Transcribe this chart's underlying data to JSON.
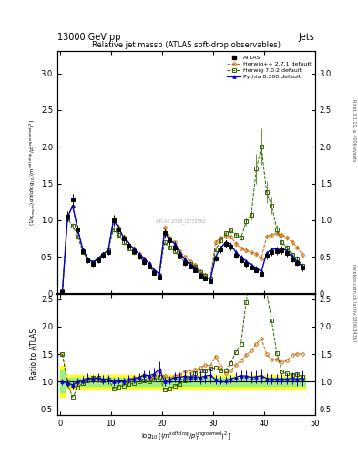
{
  "title": "Relative jet massρ (ATLAS soft-drop observables)",
  "header_left": "13000 GeV pp",
  "header_right": "Jets",
  "right_label1": "Rivet 3.1.10, ≥ 400k events",
  "right_label2": "mcplots.cern.ch [arXiv:1306.3436]",
  "watermark": "ATLAS 2019_I1772992",
  "ylim_main": [
    0,
    3.3
  ],
  "ylim_ratio": [
    0.4,
    2.6
  ],
  "yticks_main": [
    0,
    0.5,
    1.0,
    1.5,
    2.0,
    2.5,
    3.0
  ],
  "yticks_ratio": [
    0.5,
    1.0,
    1.5,
    2.0,
    2.5
  ],
  "xlim": [
    -0.5,
    50
  ],
  "xticks": [
    0,
    10,
    20,
    30,
    40,
    50
  ],
  "colors": {
    "atlas": "#000000",
    "herwig_pp": "#cc6600",
    "herwig7": "#336600",
    "pythia": "#0000cc"
  },
  "x": [
    0.5,
    1.5,
    2.5,
    3.5,
    4.5,
    5.5,
    6.5,
    7.5,
    8.5,
    9.5,
    10.5,
    11.5,
    12.5,
    13.5,
    14.5,
    15.5,
    16.5,
    17.5,
    18.5,
    19.5,
    20.5,
    21.5,
    22.5,
    23.5,
    24.5,
    25.5,
    26.5,
    27.5,
    28.5,
    29.5,
    30.5,
    31.5,
    32.5,
    33.5,
    34.5,
    35.5,
    36.5,
    37.5,
    38.5,
    39.5,
    40.5,
    41.5,
    42.5,
    43.5,
    44.5,
    45.5,
    46.5,
    47.5
  ],
  "y_atlas": [
    0.02,
    1.05,
    1.28,
    0.88,
    0.58,
    0.45,
    0.4,
    0.45,
    0.52,
    0.57,
    1.0,
    0.88,
    0.75,
    0.65,
    0.58,
    0.5,
    0.43,
    0.37,
    0.28,
    0.22,
    0.82,
    0.72,
    0.63,
    0.52,
    0.42,
    0.37,
    0.32,
    0.24,
    0.2,
    0.17,
    0.48,
    0.6,
    0.68,
    0.64,
    0.52,
    0.45,
    0.4,
    0.36,
    0.32,
    0.27,
    0.52,
    0.57,
    0.58,
    0.59,
    0.55,
    0.47,
    0.42,
    0.35
  ],
  "yerr_atlas": [
    0.01,
    0.07,
    0.08,
    0.06,
    0.04,
    0.04,
    0.03,
    0.04,
    0.04,
    0.04,
    0.07,
    0.06,
    0.05,
    0.05,
    0.04,
    0.04,
    0.04,
    0.03,
    0.03,
    0.03,
    0.06,
    0.05,
    0.05,
    0.04,
    0.04,
    0.03,
    0.03,
    0.03,
    0.02,
    0.02,
    0.04,
    0.05,
    0.05,
    0.05,
    0.04,
    0.04,
    0.04,
    0.03,
    0.03,
    0.03,
    0.05,
    0.05,
    0.05,
    0.05,
    0.05,
    0.04,
    0.04,
    0.04
  ],
  "y_herwig_pp": [
    0.03,
    1.06,
    1.18,
    0.86,
    0.58,
    0.46,
    0.42,
    0.47,
    0.54,
    0.6,
    1.0,
    0.9,
    0.77,
    0.67,
    0.62,
    0.54,
    0.48,
    0.4,
    0.31,
    0.26,
    0.9,
    0.76,
    0.7,
    0.58,
    0.5,
    0.44,
    0.39,
    0.3,
    0.26,
    0.22,
    0.7,
    0.76,
    0.78,
    0.77,
    0.68,
    0.62,
    0.59,
    0.56,
    0.54,
    0.48,
    0.78,
    0.8,
    0.82,
    0.8,
    0.76,
    0.7,
    0.63,
    0.53
  ],
  "y_herwig7": [
    0.03,
    1.02,
    0.92,
    0.78,
    0.57,
    0.46,
    0.43,
    0.48,
    0.53,
    0.59,
    0.88,
    0.8,
    0.7,
    0.62,
    0.56,
    0.5,
    0.44,
    0.37,
    0.29,
    0.24,
    0.7,
    0.63,
    0.58,
    0.5,
    0.43,
    0.4,
    0.37,
    0.29,
    0.24,
    0.21,
    0.6,
    0.72,
    0.82,
    0.86,
    0.8,
    0.76,
    0.98,
    1.07,
    1.7,
    2.0,
    1.38,
    1.2,
    0.88,
    0.7,
    0.63,
    0.53,
    0.48,
    0.38
  ],
  "y_pythia": [
    0.02,
    1.03,
    1.2,
    0.88,
    0.6,
    0.48,
    0.42,
    0.48,
    0.54,
    0.59,
    1.0,
    0.9,
    0.76,
    0.68,
    0.61,
    0.54,
    0.48,
    0.41,
    0.32,
    0.27,
    0.83,
    0.74,
    0.68,
    0.56,
    0.46,
    0.4,
    0.35,
    0.26,
    0.22,
    0.19,
    0.5,
    0.62,
    0.7,
    0.67,
    0.56,
    0.5,
    0.44,
    0.39,
    0.35,
    0.3,
    0.55,
    0.6,
    0.61,
    0.62,
    0.58,
    0.5,
    0.44,
    0.37
  ],
  "yerr_hpp": [
    0.01,
    0.04,
    0.04,
    0.03,
    0.03,
    0.02,
    0.02,
    0.02,
    0.02,
    0.02,
    0.04,
    0.03,
    0.03,
    0.03,
    0.03,
    0.02,
    0.02,
    0.02,
    0.02,
    0.02,
    0.03,
    0.03,
    0.03,
    0.02,
    0.02,
    0.02,
    0.02,
    0.02,
    0.02,
    0.02,
    0.03,
    0.03,
    0.03,
    0.03,
    0.03,
    0.02,
    0.02,
    0.02,
    0.02,
    0.02,
    0.03,
    0.03,
    0.03,
    0.03,
    0.03,
    0.03,
    0.03,
    0.03
  ],
  "yerr_h7": [
    0.01,
    0.04,
    0.04,
    0.03,
    0.03,
    0.02,
    0.02,
    0.02,
    0.02,
    0.02,
    0.04,
    0.03,
    0.03,
    0.03,
    0.03,
    0.02,
    0.02,
    0.02,
    0.02,
    0.02,
    0.03,
    0.03,
    0.03,
    0.02,
    0.02,
    0.02,
    0.02,
    0.02,
    0.02,
    0.02,
    0.03,
    0.03,
    0.03,
    0.03,
    0.03,
    0.03,
    0.05,
    0.06,
    0.2,
    0.25,
    0.15,
    0.12,
    0.06,
    0.04,
    0.04,
    0.04,
    0.04,
    0.04
  ],
  "yerr_pyt": [
    0.01,
    0.04,
    0.04,
    0.03,
    0.03,
    0.02,
    0.02,
    0.02,
    0.02,
    0.02,
    0.04,
    0.03,
    0.03,
    0.03,
    0.03,
    0.02,
    0.02,
    0.02,
    0.02,
    0.02,
    0.03,
    0.03,
    0.03,
    0.02,
    0.02,
    0.02,
    0.02,
    0.02,
    0.02,
    0.02,
    0.03,
    0.03,
    0.03,
    0.03,
    0.03,
    0.02,
    0.02,
    0.02,
    0.02,
    0.02,
    0.03,
    0.03,
    0.03,
    0.03,
    0.03,
    0.03,
    0.03,
    0.03
  ],
  "ratio_hpp": [
    1.5,
    1.01,
    0.92,
    0.98,
    1.0,
    1.02,
    1.05,
    1.04,
    1.04,
    1.05,
    1.0,
    1.02,
    1.03,
    1.03,
    1.07,
    1.08,
    1.12,
    1.08,
    1.11,
    1.18,
    1.1,
    1.06,
    1.11,
    1.12,
    1.19,
    1.19,
    1.22,
    1.25,
    1.3,
    1.29,
    1.46,
    1.27,
    1.15,
    1.2,
    1.31,
    1.38,
    1.48,
    1.56,
    1.69,
    1.78,
    1.5,
    1.4,
    1.41,
    1.36,
    1.38,
    1.49,
    1.5,
    1.51
  ],
  "ratio_h7": [
    1.5,
    0.97,
    0.72,
    0.89,
    0.98,
    1.02,
    1.08,
    1.07,
    1.02,
    1.04,
    0.88,
    0.91,
    0.93,
    0.95,
    0.97,
    1.0,
    1.02,
    1.0,
    1.04,
    1.09,
    0.85,
    0.88,
    0.92,
    0.96,
    1.02,
    1.08,
    1.16,
    1.21,
    1.2,
    1.24,
    1.25,
    1.2,
    1.21,
    1.34,
    1.54,
    1.69,
    2.45,
    2.97,
    5.31,
    7.41,
    2.65,
    2.11,
    1.52,
    1.19,
    1.15,
    1.13,
    1.14,
    1.09
  ],
  "ratio_pyt": [
    1.0,
    0.98,
    0.94,
    1.0,
    1.03,
    1.07,
    1.05,
    1.07,
    1.04,
    1.04,
    1.0,
    1.02,
    1.01,
    1.05,
    1.05,
    1.08,
    1.12,
    1.11,
    1.14,
    1.23,
    1.01,
    1.03,
    1.08,
    1.08,
    1.1,
    1.08,
    1.09,
    1.08,
    1.1,
    1.12,
    1.04,
    1.03,
    1.03,
    1.05,
    1.08,
    1.11,
    1.1,
    1.08,
    1.09,
    1.11,
    1.06,
    1.05,
    1.05,
    1.05,
    1.05,
    1.06,
    1.05,
    1.06
  ],
  "yerr_ratio_pyt": [
    0.06,
    0.07,
    0.07,
    0.07,
    0.07,
    0.08,
    0.08,
    0.08,
    0.08,
    0.08,
    0.07,
    0.07,
    0.07,
    0.08,
    0.08,
    0.08,
    0.09,
    0.09,
    0.11,
    0.14,
    0.08,
    0.08,
    0.09,
    0.09,
    0.1,
    0.09,
    0.09,
    0.12,
    0.13,
    0.14,
    0.09,
    0.08,
    0.08,
    0.08,
    0.09,
    0.1,
    0.1,
    0.1,
    0.11,
    0.13,
    0.1,
    0.09,
    0.09,
    0.09,
    0.1,
    0.11,
    0.12,
    0.14
  ],
  "band_x": [
    0,
    1,
    2,
    3,
    4,
    5,
    6,
    7,
    8,
    9,
    10,
    11,
    12,
    13,
    14,
    15,
    16,
    17,
    18,
    19,
    20,
    21,
    22,
    23,
    24,
    25,
    26,
    27,
    28,
    29,
    30,
    31,
    32,
    33,
    34,
    35,
    36,
    37,
    38,
    39,
    40,
    41,
    42,
    43,
    44,
    45,
    46,
    47,
    48
  ],
  "band_yellow_lo": [
    0.72,
    0.88,
    0.88,
    0.88,
    0.88,
    0.88,
    0.88,
    0.88,
    0.88,
    0.88,
    0.88,
    0.88,
    0.88,
    0.88,
    0.88,
    0.88,
    0.88,
    0.88,
    0.88,
    0.88,
    0.88,
    0.88,
    0.88,
    0.88,
    0.88,
    0.88,
    0.88,
    0.88,
    0.88,
    0.88,
    0.88,
    0.88,
    0.88,
    0.88,
    0.88,
    0.88,
    0.88,
    0.88,
    0.88,
    0.88,
    0.88,
    0.88,
    0.88,
    0.88,
    0.88,
    0.88,
    0.88,
    0.88,
    0.88
  ],
  "band_yellow_hi": [
    1.28,
    1.12,
    1.12,
    1.12,
    1.12,
    1.12,
    1.12,
    1.12,
    1.12,
    1.12,
    1.12,
    1.12,
    1.12,
    1.12,
    1.12,
    1.12,
    1.12,
    1.12,
    1.12,
    1.12,
    1.12,
    1.12,
    1.12,
    1.12,
    1.12,
    1.12,
    1.12,
    1.12,
    1.12,
    1.12,
    1.12,
    1.12,
    1.12,
    1.12,
    1.12,
    1.12,
    1.12,
    1.12,
    1.12,
    1.12,
    1.12,
    1.12,
    1.12,
    1.12,
    1.12,
    1.12,
    1.12,
    1.12,
    1.12
  ],
  "band_green_lo": [
    0.8,
    0.92,
    0.92,
    0.92,
    0.92,
    0.92,
    0.92,
    0.92,
    0.92,
    0.92,
    0.92,
    0.92,
    0.92,
    0.92,
    0.92,
    0.92,
    0.92,
    0.92,
    0.92,
    0.92,
    0.92,
    0.92,
    0.92,
    0.92,
    0.92,
    0.92,
    0.92,
    0.92,
    0.92,
    0.92,
    0.92,
    0.92,
    0.92,
    0.92,
    0.92,
    0.92,
    0.92,
    0.92,
    0.92,
    0.92,
    0.92,
    0.92,
    0.92,
    0.92,
    0.92,
    0.92,
    0.92,
    0.92,
    0.92
  ],
  "band_green_hi": [
    1.2,
    1.08,
    1.08,
    1.08,
    1.08,
    1.08,
    1.08,
    1.08,
    1.08,
    1.08,
    1.08,
    1.08,
    1.08,
    1.08,
    1.08,
    1.08,
    1.08,
    1.08,
    1.08,
    1.08,
    1.08,
    1.08,
    1.08,
    1.08,
    1.08,
    1.08,
    1.08,
    1.08,
    1.08,
    1.08,
    1.08,
    1.08,
    1.08,
    1.08,
    1.08,
    1.08,
    1.08,
    1.08,
    1.08,
    1.08,
    1.08,
    1.08,
    1.08,
    1.08,
    1.08,
    1.08,
    1.08,
    1.08,
    1.08
  ]
}
